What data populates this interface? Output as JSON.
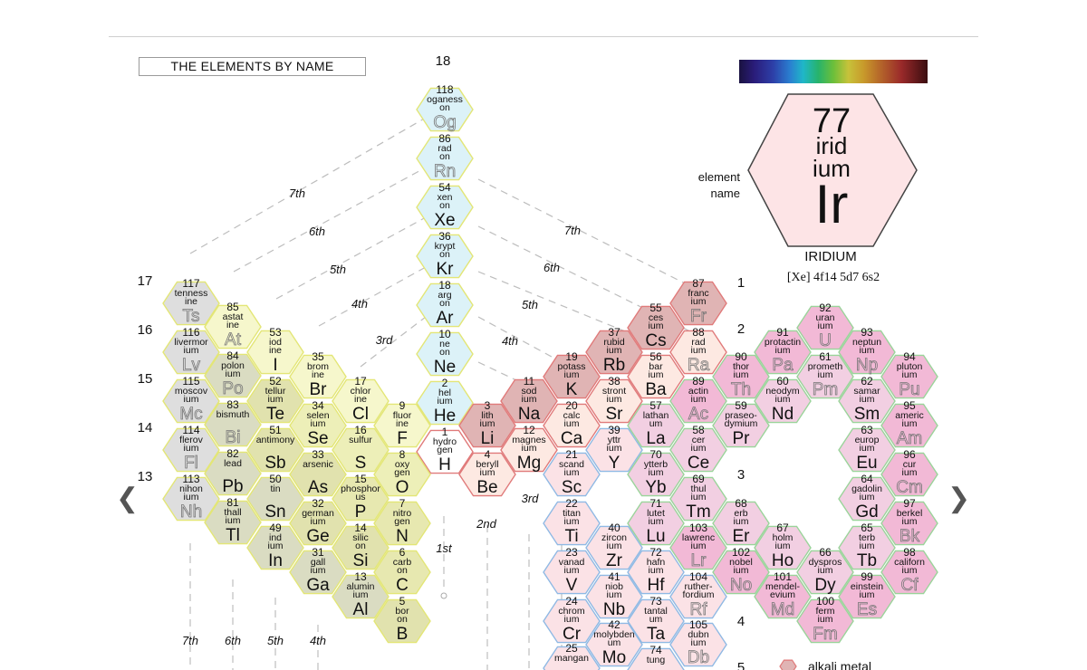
{
  "title": "THE ELEMENTS BY NAME",
  "nav": {
    "prev": "❮",
    "next": "❯"
  },
  "legend_example": {
    "number": "77",
    "syllables": [
      "irid",
      "ium",
      "Ir"
    ],
    "caption": [
      "element",
      "name"
    ],
    "name": "IRIDIUM",
    "config": "[Xe] 4f14 5d7 6s2"
  },
  "legend_item": "alkali metal",
  "group_numbers": [
    "18",
    "17",
    "16",
    "15",
    "14",
    "13",
    "1",
    "2",
    "3",
    "4",
    "5"
  ],
  "period_labels": [
    "7th",
    "6th",
    "5th",
    "4th",
    "3rd",
    "7th",
    "6th",
    "5th",
    "4th",
    "3rd",
    "2nd",
    "1st",
    "7th",
    "6th",
    "5th",
    "4th"
  ],
  "category_colors": {
    "noble": "#dcf2f8",
    "halogen": "#f6f7cc",
    "chalcogen": "#edefb8",
    "pnictogen": "#e7e8b0",
    "post": "#dadcc2",
    "metalloid": "#e1e2ae",
    "unknown": "#dedede",
    "hydrogen": "#ffffff",
    "alkali": "#e0b4b4",
    "alkaline": "#fde9e2",
    "transition": "#fbe2e6",
    "lanthanide": "#f2cfe2",
    "actinide": "#f2b9d6",
    "border_noble": "#e3e676",
    "border_halogen": "#e3e676",
    "border_alkali": "#e07a7a",
    "border_transition": "#8fb9e4",
    "border_lanth": "#9ad49a",
    "border_unknown": "#e3e676"
  },
  "elements": [
    {
      "n": "118",
      "s": "Og",
      "l": [
        "oganess",
        "on"
      ],
      "c": "noble",
      "gray": true
    },
    {
      "n": "86",
      "s": "Rn",
      "l": [
        "rad",
        "on"
      ],
      "c": "noble",
      "gray": true
    },
    {
      "n": "54",
      "s": "Xe",
      "l": [
        "xen",
        "on"
      ],
      "c": "noble"
    },
    {
      "n": "36",
      "s": "Kr",
      "l": [
        "krypt",
        "on"
      ],
      "c": "noble"
    },
    {
      "n": "18",
      "s": "Ar",
      "l": [
        "arg",
        "on"
      ],
      "c": "noble"
    },
    {
      "n": "10",
      "s": "Ne",
      "l": [
        "ne",
        "on"
      ],
      "c": "noble"
    },
    {
      "n": "2",
      "s": "He",
      "l": [
        "hel",
        "ium"
      ],
      "c": "noble"
    },
    {
      "n": "1",
      "s": "H",
      "l": [
        "hydro",
        "gen"
      ],
      "c": "hydrogen"
    },
    {
      "n": "117",
      "s": "Ts",
      "l": [
        "tenness",
        "ine"
      ],
      "c": "unknown",
      "gray": true
    },
    {
      "n": "116",
      "s": "Lv",
      "l": [
        "livermor",
        "ium"
      ],
      "c": "unknown",
      "gray": true
    },
    {
      "n": "115",
      "s": "Mc",
      "l": [
        "moscov",
        "ium"
      ],
      "c": "unknown",
      "gray": true
    },
    {
      "n": "114",
      "s": "Fl",
      "l": [
        "flerov",
        "ium"
      ],
      "c": "unknown",
      "gray": true
    },
    {
      "n": "113",
      "s": "Nh",
      "l": [
        "nihon",
        "ium"
      ],
      "c": "unknown",
      "gray": true
    },
    {
      "n": "85",
      "s": "At",
      "l": [
        "astat",
        "ine"
      ],
      "c": "halogen",
      "gray": true
    },
    {
      "n": "84",
      "s": "Po",
      "l": [
        "polon",
        "ium"
      ],
      "c": "post",
      "gray": true
    },
    {
      "n": "83",
      "s": "Bi",
      "l": [
        "bismuth"
      ],
      "c": "post",
      "gray": true
    },
    {
      "n": "82",
      "s": "Pb",
      "l": [
        "lead"
      ],
      "c": "post"
    },
    {
      "n": "81",
      "s": "Tl",
      "l": [
        "thall",
        "ium"
      ],
      "c": "post"
    },
    {
      "n": "53",
      "s": "I",
      "l": [
        "iod",
        "ine"
      ],
      "c": "halogen"
    },
    {
      "n": "52",
      "s": "Te",
      "l": [
        "tellur",
        "ium"
      ],
      "c": "metalloid"
    },
    {
      "n": "51",
      "s": "Sb",
      "l": [
        "antimony"
      ],
      "c": "metalloid"
    },
    {
      "n": "50",
      "s": "Sn",
      "l": [
        "tin"
      ],
      "c": "post"
    },
    {
      "n": "49",
      "s": "In",
      "l": [
        "ind",
        "ium"
      ],
      "c": "post"
    },
    {
      "n": "35",
      "s": "Br",
      "l": [
        "brom",
        "ine"
      ],
      "c": "halogen"
    },
    {
      "n": "34",
      "s": "Se",
      "l": [
        "selen",
        "ium"
      ],
      "c": "chalcogen"
    },
    {
      "n": "33",
      "s": "As",
      "l": [
        "arsenic"
      ],
      "c": "metalloid"
    },
    {
      "n": "32",
      "s": "Ge",
      "l": [
        "german",
        "ium"
      ],
      "c": "metalloid"
    },
    {
      "n": "31",
      "s": "Ga",
      "l": [
        "gall",
        "ium"
      ],
      "c": "post"
    },
    {
      "n": "17",
      "s": "Cl",
      "l": [
        "chlor",
        "ine"
      ],
      "c": "halogen"
    },
    {
      "n": "16",
      "s": "S",
      "l": [
        "sulfur"
      ],
      "c": "chalcogen"
    },
    {
      "n": "15",
      "s": "P",
      "l": [
        "phosphor",
        "us"
      ],
      "c": "pnictogen"
    },
    {
      "n": "14",
      "s": "Si",
      "l": [
        "silic",
        "on"
      ],
      "c": "metalloid"
    },
    {
      "n": "13",
      "s": "Al",
      "l": [
        "alumin",
        "ium"
      ],
      "c": "post"
    },
    {
      "n": "9",
      "s": "F",
      "l": [
        "fluor",
        "ine"
      ],
      "c": "halogen"
    },
    {
      "n": "8",
      "s": "O",
      "l": [
        "oxy",
        "gen"
      ],
      "c": "chalcogen"
    },
    {
      "n": "7",
      "s": "N",
      "l": [
        "nitro",
        "gen"
      ],
      "c": "pnictogen"
    },
    {
      "n": "6",
      "s": "C",
      "l": [
        "carb",
        "on"
      ],
      "c": "pnictogen"
    },
    {
      "n": "5",
      "s": "B",
      "l": [
        "bor",
        "on"
      ],
      "c": "metalloid"
    },
    {
      "n": "3",
      "s": "Li",
      "l": [
        "lith",
        "ium"
      ],
      "c": "alkali"
    },
    {
      "n": "4",
      "s": "Be",
      "l": [
        "beryll",
        "ium"
      ],
      "c": "alkaline"
    },
    {
      "n": "11",
      "s": "Na",
      "l": [
        "sod",
        "ium"
      ],
      "c": "alkali"
    },
    {
      "n": "12",
      "s": "Mg",
      "l": [
        "magnes",
        "ium"
      ],
      "c": "alkaline"
    },
    {
      "n": "19",
      "s": "K",
      "l": [
        "potass",
        "ium"
      ],
      "c": "alkali"
    },
    {
      "n": "20",
      "s": "Ca",
      "l": [
        "calc",
        "ium"
      ],
      "c": "alkaline"
    },
    {
      "n": "21",
      "s": "Sc",
      "l": [
        "scand",
        "ium"
      ],
      "c": "transition"
    },
    {
      "n": "22",
      "s": "Ti",
      "l": [
        "titan",
        "ium"
      ],
      "c": "transition"
    },
    {
      "n": "23",
      "s": "V",
      "l": [
        "vanad",
        "ium"
      ],
      "c": "transition"
    },
    {
      "n": "24",
      "s": "Cr",
      "l": [
        "chrom",
        "ium"
      ],
      "c": "transition"
    },
    {
      "n": "25",
      "s": "",
      "l": [
        "mangan"
      ],
      "c": "transition"
    },
    {
      "n": "37",
      "s": "Rb",
      "l": [
        "rubid",
        "ium"
      ],
      "c": "alkali"
    },
    {
      "n": "38",
      "s": "Sr",
      "l": [
        "stront",
        "ium"
      ],
      "c": "alkaline"
    },
    {
      "n": "39",
      "s": "Y",
      "l": [
        "yttr",
        "ium"
      ],
      "c": "transition"
    },
    {
      "n": "40",
      "s": "Zr",
      "l": [
        "zircon",
        "ium"
      ],
      "c": "transition"
    },
    {
      "n": "41",
      "s": "Nb",
      "l": [
        "niob",
        "ium"
      ],
      "c": "transition"
    },
    {
      "n": "42",
      "s": "Mo",
      "l": [
        "molybden",
        "um"
      ],
      "c": "transition"
    },
    {
      "n": "55",
      "s": "Cs",
      "l": [
        "ces",
        "ium"
      ],
      "c": "alkali"
    },
    {
      "n": "56",
      "s": "Ba",
      "l": [
        "bar",
        "ium"
      ],
      "c": "alkaline"
    },
    {
      "n": "57",
      "s": "La",
      "l": [
        "lathan",
        "um"
      ],
      "c": "lanthanide"
    },
    {
      "n": "70",
      "s": "Yb",
      "l": [
        "ytterb",
        "ium"
      ],
      "c": "lanthanide"
    },
    {
      "n": "71",
      "s": "Lu",
      "l": [
        "lutet",
        "ium"
      ],
      "c": "lanthanide"
    },
    {
      "n": "72",
      "s": "Hf",
      "l": [
        "hafn",
        "ium"
      ],
      "c": "transition"
    },
    {
      "n": "73",
      "s": "Ta",
      "l": [
        "tantal",
        "um"
      ],
      "c": "transition"
    },
    {
      "n": "74",
      "s": "",
      "l": [
        "tung"
      ],
      "c": "transition"
    },
    {
      "n": "87",
      "s": "Fr",
      "l": [
        "franc",
        "ium"
      ],
      "c": "alkali",
      "gray": true
    },
    {
      "n": "88",
      "s": "Ra",
      "l": [
        "rad",
        "ium"
      ],
      "c": "alkaline",
      "gray": true
    },
    {
      "n": "89",
      "s": "Ac",
      "l": [
        "actin",
        "ium"
      ],
      "c": "actinide",
      "gray": true
    },
    {
      "n": "58",
      "s": "Ce",
      "l": [
        "cer",
        "ium"
      ],
      "c": "lanthanide"
    },
    {
      "n": "69",
      "s": "Tm",
      "l": [
        "thul",
        "ium"
      ],
      "c": "lanthanide"
    },
    {
      "n": "103",
      "s": "Lr",
      "l": [
        "lawrenc",
        "ium"
      ],
      "c": "actinide",
      "gray": true
    },
    {
      "n": "104",
      "s": "Rf",
      "l": [
        "ruther-",
        "fordium"
      ],
      "c": "transition",
      "gray": true
    },
    {
      "n": "105",
      "s": "Db",
      "l": [
        "dubn",
        "ium"
      ],
      "c": "transition",
      "gray": true
    },
    {
      "n": "90",
      "s": "Th",
      "l": [
        "thor",
        "ium"
      ],
      "c": "actinide",
      "gray": true
    },
    {
      "n": "59",
      "s": "Pr",
      "l": [
        "praseo-",
        "dymium"
      ],
      "c": "lanthanide"
    },
    {
      "n": "68",
      "s": "Er",
      "l": [
        "erb",
        "ium"
      ],
      "c": "lanthanide"
    },
    {
      "n": "102",
      "s": "No",
      "l": [
        "nobel",
        "ium"
      ],
      "c": "actinide",
      "gray": true
    },
    {
      "n": "91",
      "s": "Pa",
      "l": [
        "protactin",
        "ium"
      ],
      "c": "actinide",
      "gray": true
    },
    {
      "n": "60",
      "s": "Nd",
      "l": [
        "neodym",
        "ium"
      ],
      "c": "lanthanide"
    },
    {
      "n": "67",
      "s": "Ho",
      "l": [
        "holm",
        "ium"
      ],
      "c": "lanthanide"
    },
    {
      "n": "101",
      "s": "Md",
      "l": [
        "mendel-",
        "evium"
      ],
      "c": "actinide",
      "gray": true
    },
    {
      "n": "92",
      "s": "U",
      "l": [
        "uran",
        "ium"
      ],
      "c": "actinide",
      "gray": true
    },
    {
      "n": "61",
      "s": "Pm",
      "l": [
        "prometh",
        "ium"
      ],
      "c": "lanthanide",
      "gray": true
    },
    {
      "n": "66",
      "s": "Dy",
      "l": [
        "dyspros",
        "ium"
      ],
      "c": "lanthanide"
    },
    {
      "n": "100",
      "s": "Fm",
      "l": [
        "ferm",
        "ium"
      ],
      "c": "actinide",
      "gray": true
    },
    {
      "n": "93",
      "s": "Np",
      "l": [
        "neptun",
        "ium"
      ],
      "c": "actinide",
      "gray": true
    },
    {
      "n": "62",
      "s": "Sm",
      "l": [
        "samar",
        "ium"
      ],
      "c": "lanthanide"
    },
    {
      "n": "63",
      "s": "Eu",
      "l": [
        "europ",
        "ium"
      ],
      "c": "lanthanide"
    },
    {
      "n": "64",
      "s": "Gd",
      "l": [
        "gadolin",
        "ium"
      ],
      "c": "lanthanide"
    },
    {
      "n": "65",
      "s": "Tb",
      "l": [
        "terb",
        "ium"
      ],
      "c": "lanthanide"
    },
    {
      "n": "99",
      "s": "Es",
      "l": [
        "einstein",
        "ium"
      ],
      "c": "actinide",
      "gray": true
    },
    {
      "n": "94",
      "s": "Pu",
      "l": [
        "pluton",
        "ium"
      ],
      "c": "actinide",
      "gray": true
    },
    {
      "n": "95",
      "s": "Am",
      "l": [
        "americ",
        "ium"
      ],
      "c": "actinide",
      "gray": true
    },
    {
      "n": "96",
      "s": "Cm",
      "l": [
        "cur",
        "ium"
      ],
      "c": "actinide",
      "gray": true
    },
    {
      "n": "97",
      "s": "Bk",
      "l": [
        "berkel",
        "ium"
      ],
      "c": "actinide",
      "gray": true
    },
    {
      "n": "98",
      "s": "Cf",
      "l": [
        "californ",
        "ium"
      ],
      "c": "actinide",
      "gray": true
    }
  ]
}
